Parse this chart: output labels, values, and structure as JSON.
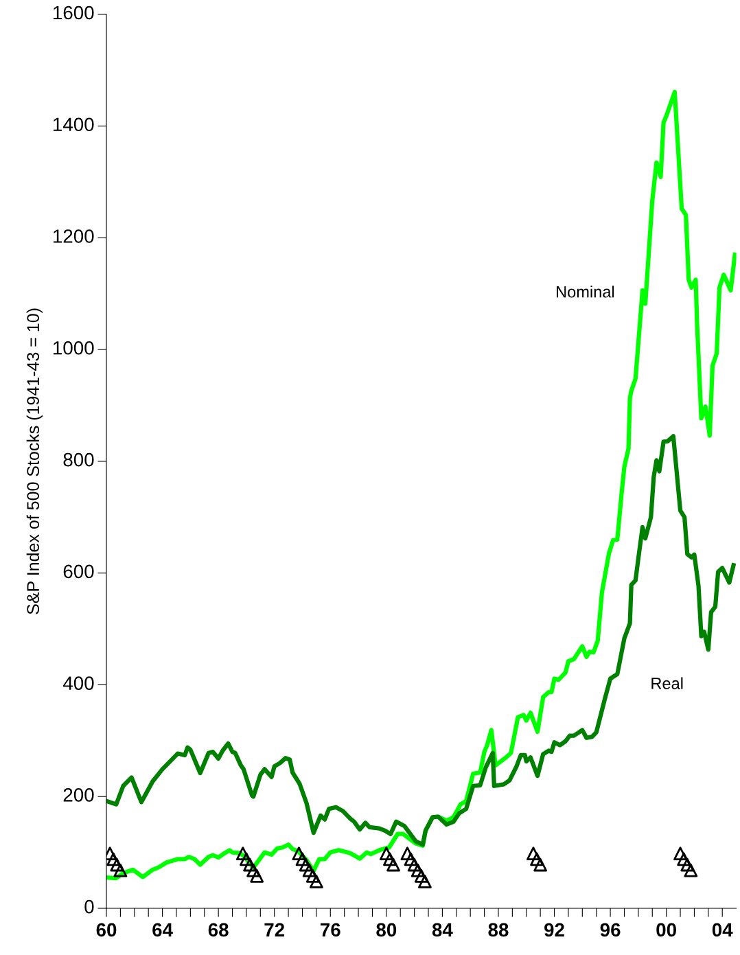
{
  "chart_data": {
    "type": "line",
    "ylabel": "S&P Index of 500 Stocks (1941-43 = 10)",
    "xlim": [
      1960,
      2005
    ],
    "ylim": [
      0,
      1600
    ],
    "yticks": [
      0,
      200,
      400,
      600,
      800,
      1000,
      1200,
      1400,
      1600
    ],
    "xticks": [
      {
        "value": 1960,
        "label": "60"
      },
      {
        "value": 1961,
        "label": null
      },
      {
        "value": 1962,
        "label": null
      },
      {
        "value": 1963,
        "label": null
      },
      {
        "value": 1964,
        "label": "64"
      },
      {
        "value": 1965,
        "label": null
      },
      {
        "value": 1966,
        "label": null
      },
      {
        "value": 1967,
        "label": null
      },
      {
        "value": 1968,
        "label": "68"
      },
      {
        "value": 1969,
        "label": null
      },
      {
        "value": 1970,
        "label": null
      },
      {
        "value": 1971,
        "label": null
      },
      {
        "value": 1972,
        "label": "72"
      },
      {
        "value": 1973,
        "label": null
      },
      {
        "value": 1974,
        "label": null
      },
      {
        "value": 1975,
        "label": null
      },
      {
        "value": 1976,
        "label": "76"
      },
      {
        "value": 1977,
        "label": null
      },
      {
        "value": 1978,
        "label": null
      },
      {
        "value": 1979,
        "label": null
      },
      {
        "value": 1980,
        "label": "80"
      },
      {
        "value": 1981,
        "label": null
      },
      {
        "value": 1982,
        "label": null
      },
      {
        "value": 1983,
        "label": null
      },
      {
        "value": 1984,
        "label": "84"
      },
      {
        "value": 1985,
        "label": null
      },
      {
        "value": 1986,
        "label": null
      },
      {
        "value": 1987,
        "label": null
      },
      {
        "value": 1988,
        "label": "88"
      },
      {
        "value": 1989,
        "label": null
      },
      {
        "value": 1990,
        "label": null
      },
      {
        "value": 1991,
        "label": null
      },
      {
        "value": 1992,
        "label": "92"
      },
      {
        "value": 1993,
        "label": null
      },
      {
        "value": 1994,
        "label": null
      },
      {
        "value": 1995,
        "label": null
      },
      {
        "value": 1996,
        "label": "96"
      },
      {
        "value": 1997,
        "label": null
      },
      {
        "value": 1998,
        "label": null
      },
      {
        "value": 1999,
        "label": null
      },
      {
        "value": 2000,
        "label": "00"
      },
      {
        "value": 2001,
        "label": null
      },
      {
        "value": 2002,
        "label": null
      },
      {
        "value": 2003,
        "label": null
      },
      {
        "value": 2004,
        "label": "04"
      }
    ],
    "grid": false,
    "legend": false,
    "line_style": "solid",
    "marker": "none",
    "series": [
      {
        "name": "Nominal",
        "color": "#00ff00",
        "x": [
          1960.0,
          1960.7,
          1961.2,
          1961.9,
          1962.6,
          1963.3,
          1963.7,
          1964.3,
          1965.1,
          1965.6,
          1965.9,
          1966.3,
          1966.7,
          1967.3,
          1967.6,
          1968.0,
          1968.4,
          1968.8,
          1969.0,
          1969.5,
          1969.8,
          1970.5,
          1971.3,
          1971.8,
          1972.2,
          1972.6,
          1973.0,
          1973.3,
          1973.7,
          1974.3,
          1974.8,
          1975.2,
          1975.6,
          1976.0,
          1976.6,
          1977.4,
          1978.1,
          1978.6,
          1978.9,
          1979.5,
          1980.2,
          1980.8,
          1981.2,
          1982.1,
          1982.6,
          1982.8,
          1983.3,
          1983.7,
          1984.3,
          1984.8,
          1985.3,
          1985.7,
          1986.2,
          1986.7,
          1987.0,
          1987.2,
          1987.5,
          1987.8,
          1988.5,
          1988.9,
          1989.4,
          1989.8,
          1990.0,
          1990.3,
          1990.8,
          1991.2,
          1991.6,
          1991.8,
          1992.0,
          1992.3,
          1992.8,
          1993.0,
          1993.4,
          1994.0,
          1994.3,
          1994.5,
          1994.8,
          1995.1,
          1995.4,
          1995.9,
          1996.2,
          1996.5,
          1996.8,
          1997.0,
          1997.3,
          1997.4,
          1997.5,
          1997.8,
          1998.3,
          1998.5,
          1999.0,
          1999.3,
          1999.6,
          1999.8,
          2000.0,
          2000.6,
          2001.1,
          2001.4,
          2001.6,
          2001.8,
          2002.1,
          2002.2,
          2002.5,
          2002.8,
          2003.1,
          2003.3,
          2003.6,
          2003.8,
          2004.1,
          2004.6,
          2004.9
        ],
        "values": [
          55,
          54,
          63,
          69,
          56,
          69,
          73,
          82,
          88,
          88,
          92,
          88,
          78,
          92,
          95,
          91,
          98,
          104,
          100,
          99,
          94,
          73,
          100,
          96,
          107,
          109,
          114,
          106,
          102,
          86,
          67,
          88,
          88,
          100,
          104,
          99,
          89,
          100,
          97,
          104,
          109,
          133,
          133,
          116,
          112,
          139,
          163,
          164,
          157,
          163,
          186,
          192,
          241,
          243,
          280,
          292,
          319,
          256,
          269,
          278,
          342,
          346,
          336,
          350,
          316,
          378,
          387,
          387,
          411,
          409,
          422,
          442,
          446,
          469,
          450,
          459,
          458,
          479,
          565,
          635,
          659,
          660,
          741,
          790,
          823,
          913,
          926,
          948,
          1106,
          1082,
          1267,
          1335,
          1309,
          1406,
          1418,
          1461,
          1252,
          1241,
          1125,
          1111,
          1125,
          1045,
          877,
          898,
          846,
          971,
          993,
          1111,
          1134,
          1106,
          1170
        ]
      },
      {
        "name": "Real",
        "color": "#008000",
        "x": [
          1960.0,
          1960.7,
          1961.2,
          1961.8,
          1962.5,
          1963.3,
          1964.0,
          1965.1,
          1965.6,
          1965.8,
          1966.0,
          1966.7,
          1967.3,
          1967.6,
          1968.0,
          1968.3,
          1968.7,
          1969.0,
          1969.2,
          1969.6,
          1969.8,
          1970.4,
          1970.5,
          1971.0,
          1971.3,
          1971.8,
          1972.0,
          1972.4,
          1972.8,
          1973.1,
          1973.3,
          1973.8,
          1974.3,
          1974.8,
          1975.3,
          1975.6,
          1975.9,
          1976.4,
          1976.9,
          1977.4,
          1977.7,
          1978.1,
          1978.5,
          1978.8,
          1979.5,
          1979.9,
          1980.3,
          1980.7,
          1981.3,
          1982.1,
          1982.6,
          1982.8,
          1983.3,
          1983.7,
          1984.3,
          1984.8,
          1985.2,
          1985.7,
          1986.2,
          1986.7,
          1987.1,
          1987.6,
          1987.7,
          1988.4,
          1988.8,
          1989.3,
          1989.6,
          1989.9,
          1990.0,
          1990.3,
          1990.8,
          1991.2,
          1991.6,
          1991.8,
          1992.0,
          1992.4,
          1992.8,
          1993.1,
          1993.4,
          1994.0,
          1994.3,
          1994.7,
          1995.0,
          1995.6,
          1996.0,
          1996.5,
          1997.0,
          1997.4,
          1997.5,
          1997.8,
          1998.0,
          1998.3,
          1998.5,
          1998.9,
          1999.1,
          1999.3,
          1999.5,
          1999.8,
          2000.1,
          2000.5,
          2001.0,
          2001.3,
          2001.5,
          2001.8,
          2002.0,
          2002.3,
          2002.5,
          2002.7,
          2003.0,
          2003.2,
          2003.5,
          2003.7,
          2004.0,
          2004.5,
          2004.8
        ],
        "values": [
          192,
          186,
          219,
          234,
          190,
          227,
          249,
          277,
          274,
          288,
          284,
          242,
          278,
          280,
          268,
          282,
          295,
          280,
          278,
          256,
          249,
          202,
          200,
          239,
          249,
          235,
          254,
          260,
          269,
          266,
          243,
          223,
          188,
          135,
          166,
          159,
          178,
          181,
          174,
          161,
          155,
          141,
          153,
          145,
          143,
          139,
          133,
          155,
          147,
          120,
          114,
          139,
          163,
          164,
          150,
          155,
          170,
          178,
          219,
          220,
          252,
          278,
          219,
          222,
          229,
          254,
          274,
          274,
          263,
          270,
          237,
          276,
          282,
          280,
          297,
          292,
          299,
          309,
          309,
          319,
          305,
          307,
          315,
          374,
          411,
          419,
          483,
          510,
          579,
          587,
          626,
          682,
          662,
          700,
          772,
          802,
          782,
          835,
          836,
          845,
          712,
          700,
          634,
          628,
          633,
          577,
          487,
          495,
          463,
          530,
          540,
          602,
          609,
          583,
          614
        ]
      },
      {
        "type": "scatter",
        "marker": "triangle",
        "color": "#000000",
        "x": [
          1960.25,
          1960.5,
          1960.75,
          1961.0,
          1969.75,
          1970.0,
          1970.25,
          1970.5,
          1970.75,
          1973.75,
          1974.0,
          1974.25,
          1974.5,
          1974.75,
          1975.0,
          1980.0,
          1980.25,
          1980.5,
          1981.5,
          1981.75,
          1982.0,
          1982.25,
          1982.5,
          1982.75,
          1990.5,
          1990.75,
          1991.0,
          2001.0,
          2001.25,
          2001.5,
          2001.75
        ],
        "values": [
          98,
          88,
          78,
          68,
          98,
          88,
          78,
          68,
          58,
          98,
          88,
          78,
          68,
          58,
          48,
          98,
          88,
          78,
          98,
          88,
          78,
          68,
          58,
          48,
          98,
          88,
          78,
          98,
          88,
          78,
          68
        ]
      }
    ]
  }
}
